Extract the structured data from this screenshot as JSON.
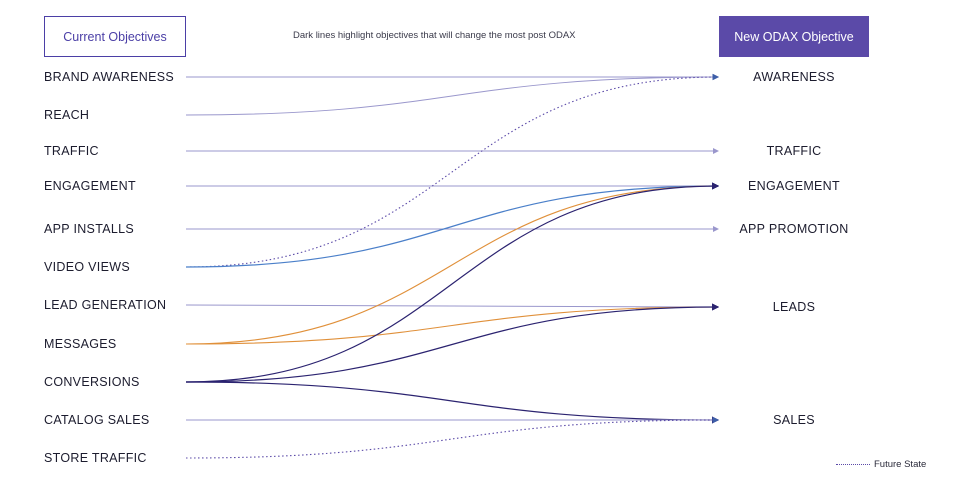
{
  "header": {
    "current_label": "Current Objectives",
    "new_label": "New ODAX Objective",
    "note": "Dark lines highlight objectives that will change the most post ODAX"
  },
  "colors": {
    "accent": "#5b4aa8",
    "dark": "#2b2370",
    "light": "#9a97cc",
    "blue": "#4a7fc9",
    "orange": "#e0903a"
  },
  "sources": [
    {
      "id": "brand_awareness",
      "label": "BRAND AWARENESS"
    },
    {
      "id": "reach",
      "label": "REACH"
    },
    {
      "id": "traffic",
      "label": "TRAFFIC"
    },
    {
      "id": "engagement",
      "label": "ENGAGEMENT"
    },
    {
      "id": "app_installs",
      "label": "APP INSTALLS"
    },
    {
      "id": "video_views",
      "label": "VIDEO VIEWS"
    },
    {
      "id": "lead_generation",
      "label": "LEAD GENERATION"
    },
    {
      "id": "messages",
      "label": "MESSAGES"
    },
    {
      "id": "conversions",
      "label": "CONVERSIONS"
    },
    {
      "id": "catalog_sales",
      "label": "CATALOG SALES"
    },
    {
      "id": "store_traffic",
      "label": "STORE TRAFFIC"
    }
  ],
  "targets": [
    {
      "id": "awareness",
      "label": "AWARENESS"
    },
    {
      "id": "traffic",
      "label": "TRAFFIC"
    },
    {
      "id": "engagement",
      "label": "ENGAGEMENT"
    },
    {
      "id": "app_promotion",
      "label": "APP PROMOTION"
    },
    {
      "id": "leads",
      "label": "LEADS"
    },
    {
      "id": "sales",
      "label": "SALES"
    }
  ],
  "links": [
    {
      "from": "brand_awareness",
      "to": "awareness",
      "style": "light"
    },
    {
      "from": "reach",
      "to": "awareness",
      "style": "light"
    },
    {
      "from": "traffic",
      "to": "traffic",
      "style": "light"
    },
    {
      "from": "engagement",
      "to": "engagement",
      "style": "light"
    },
    {
      "from": "app_installs",
      "to": "app_promotion",
      "style": "light"
    },
    {
      "from": "video_views",
      "to": "awareness",
      "style": "future"
    },
    {
      "from": "video_views",
      "to": "engagement",
      "style": "blue"
    },
    {
      "from": "lead_generation",
      "to": "leads",
      "style": "light"
    },
    {
      "from": "messages",
      "to": "engagement",
      "style": "orange"
    },
    {
      "from": "messages",
      "to": "leads",
      "style": "orange"
    },
    {
      "from": "conversions",
      "to": "engagement",
      "style": "dark"
    },
    {
      "from": "conversions",
      "to": "leads",
      "style": "dark"
    },
    {
      "from": "conversions",
      "to": "sales",
      "style": "dark"
    },
    {
      "from": "catalog_sales",
      "to": "sales",
      "style": "light"
    },
    {
      "from": "store_traffic",
      "to": "sales",
      "style": "future"
    }
  ],
  "legend": {
    "future_label": "Future State"
  }
}
